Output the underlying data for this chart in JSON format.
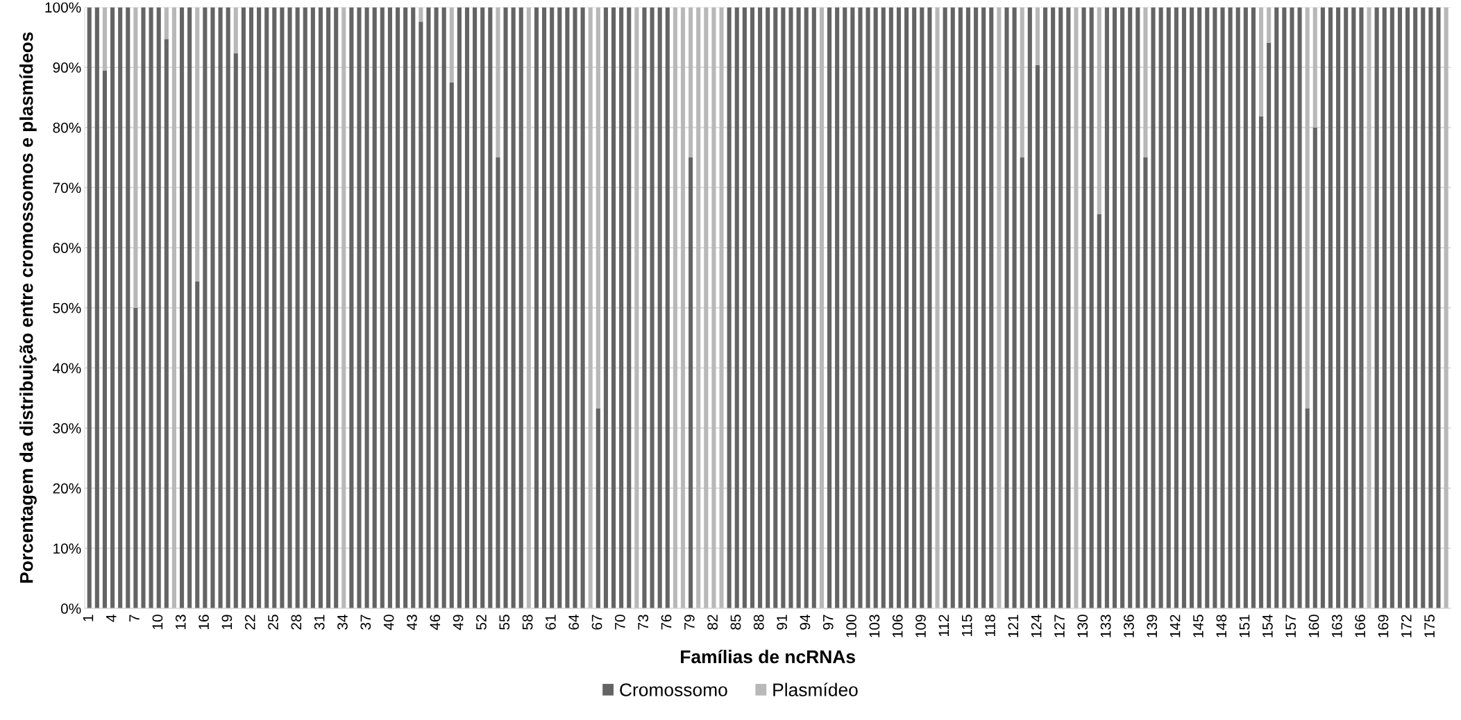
{
  "chart_data": {
    "type": "bar",
    "stacked": true,
    "xlabel": "Famílias de ncRNAs",
    "ylabel": "Porcentagem da distribuição entre cromossomos e plasmídeos",
    "categories": [
      "1",
      null,
      null,
      "4",
      null,
      null,
      "7",
      null,
      null,
      "10",
      null,
      null,
      "13",
      null,
      null,
      "16",
      null,
      null,
      "19",
      null,
      null,
      "22",
      null,
      null,
      "25",
      null,
      null,
      "28",
      null,
      null,
      "31",
      null,
      null,
      "34",
      null,
      null,
      "37",
      null,
      null,
      "40",
      null,
      null,
      "43",
      null,
      null,
      "46",
      null,
      null,
      "49",
      null,
      null,
      "52",
      null,
      null,
      "55",
      null,
      null,
      "58",
      null,
      null,
      "61",
      null,
      null,
      "64",
      null,
      null,
      "67",
      null,
      null,
      "70",
      null,
      null,
      "73",
      null,
      null,
      "76",
      null,
      null,
      "79",
      null,
      null,
      "82",
      null,
      null,
      "85",
      null,
      null,
      "88",
      null,
      null,
      "91",
      null,
      null,
      "94",
      null,
      null,
      "97",
      null,
      null,
      "100",
      null,
      null,
      "103",
      null,
      null,
      "106",
      null,
      null,
      "109",
      null,
      null,
      "112",
      null,
      null,
      "115",
      null,
      null,
      "118",
      null,
      null,
      "121",
      null,
      null,
      "124",
      null,
      null,
      "127",
      null,
      null,
      "130",
      null,
      null,
      "133",
      null,
      null,
      "136",
      null,
      null,
      "139",
      null,
      null,
      "142",
      null,
      null,
      "145",
      null,
      null,
      "148",
      null,
      null,
      "151",
      null,
      null,
      "154",
      null,
      null,
      "157",
      null,
      null,
      "160",
      null,
      null,
      "163",
      null,
      null,
      "166",
      null,
      null,
      "169",
      null,
      null,
      "172",
      null,
      null,
      "175",
      null,
      null
    ],
    "series": [
      {
        "name": "Cromossomo",
        "color": "#646464",
        "values": [
          100,
          100,
          89.5,
          100,
          100,
          100,
          50,
          100,
          100,
          100,
          94.7,
          0,
          100,
          100,
          54.4,
          100,
          100,
          100,
          100,
          92.3,
          100,
          100,
          100,
          100,
          100,
          100,
          100,
          100,
          100,
          100,
          100,
          100,
          100,
          0,
          100,
          100,
          100,
          100,
          100,
          100,
          100,
          100,
          100,
          97.6,
          100,
          100,
          100,
          87.5,
          100,
          100,
          100,
          100,
          100,
          75,
          100,
          100,
          100,
          0,
          100,
          100,
          100,
          100,
          100,
          100,
          100,
          0,
          33.3,
          100,
          100,
          100,
          100,
          0,
          100,
          100,
          100,
          100,
          0,
          0,
          75,
          0,
          0,
          0,
          0,
          100,
          100,
          100,
          100,
          100,
          100,
          100,
          100,
          100,
          100,
          100,
          100,
          0,
          100,
          100,
          100,
          100,
          100,
          100,
          100,
          100,
          100,
          100,
          100,
          100,
          100,
          100,
          0,
          100,
          100,
          100,
          100,
          100,
          100,
          100,
          0,
          100,
          100,
          75,
          100,
          90.4,
          100,
          100,
          100,
          100,
          0,
          100,
          100,
          65.6,
          100,
          100,
          100,
          100,
          100,
          75,
          100,
          100,
          100,
          100,
          100,
          100,
          100,
          100,
          100,
          100,
          100,
          100,
          100,
          100,
          81.8,
          94.1,
          100,
          100,
          100,
          100,
          33.3,
          80,
          100,
          100,
          100,
          100,
          100,
          100,
          0,
          100,
          100,
          100,
          100,
          100,
          100,
          100,
          100,
          100,
          0
        ]
      },
      {
        "name": "Plasmídeo",
        "color": "#b8b8b8",
        "values": [
          0,
          0,
          10.5,
          0,
          0,
          0,
          50,
          0,
          0,
          0,
          5.3,
          100,
          0,
          0,
          45.6,
          0,
          0,
          0,
          0,
          7.7,
          0,
          0,
          0,
          0,
          0,
          0,
          0,
          0,
          0,
          0,
          0,
          0,
          0,
          100,
          0,
          0,
          0,
          0,
          0,
          0,
          0,
          0,
          0,
          2.4,
          0,
          0,
          0,
          12.5,
          0,
          0,
          0,
          0,
          0,
          25,
          0,
          0,
          0,
          100,
          0,
          0,
          0,
          0,
          0,
          0,
          0,
          100,
          66.7,
          0,
          0,
          0,
          0,
          100,
          0,
          0,
          0,
          0,
          100,
          100,
          25,
          100,
          100,
          100,
          100,
          0,
          0,
          0,
          0,
          0,
          0,
          0,
          0,
          0,
          0,
          0,
          0,
          100,
          0,
          0,
          0,
          0,
          0,
          0,
          0,
          0,
          0,
          0,
          0,
          0,
          0,
          0,
          100,
          0,
          0,
          0,
          0,
          0,
          0,
          0,
          100,
          0,
          0,
          25,
          0,
          9.6,
          0,
          0,
          0,
          0,
          100,
          0,
          0,
          34.4,
          0,
          0,
          0,
          0,
          0,
          25,
          0,
          0,
          0,
          0,
          0,
          0,
          0,
          0,
          0,
          0,
          0,
          0,
          0,
          0,
          18.2,
          5.9,
          0,
          0,
          0,
          0,
          66.7,
          20,
          0,
          0,
          0,
          0,
          0,
          0,
          100,
          0,
          0,
          0,
          0,
          0,
          0,
          0,
          0,
          0,
          100
        ]
      }
    ],
    "ylim": [
      0,
      100
    ],
    "yticks": [
      {
        "value": 0,
        "label": "0%"
      },
      {
        "value": 10,
        "label": "10%"
      },
      {
        "value": 20,
        "label": "20%"
      },
      {
        "value": 30,
        "label": "30%"
      },
      {
        "value": 40,
        "label": "40%"
      },
      {
        "value": 50,
        "label": "50%"
      },
      {
        "value": 60,
        "label": "60%"
      },
      {
        "value": 70,
        "label": "70%"
      },
      {
        "value": 80,
        "label": "80%"
      },
      {
        "value": 90,
        "label": "90%"
      },
      {
        "value": 100,
        "label": "100%"
      }
    ],
    "grid": "y",
    "legend": "bottom"
  }
}
